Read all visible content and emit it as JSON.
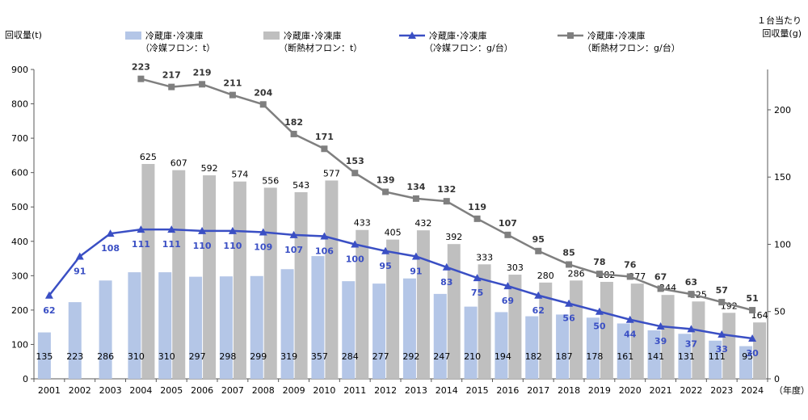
{
  "chart_data": {
    "type": "bar",
    "y_left_label": "回収量(t)",
    "y_right_label_line1": "１台当たり",
    "y_right_label_line2": "回収量(g)",
    "x_unit": "（年度）",
    "ylim_left": [
      0,
      900
    ],
    "yticks_left": [
      "0",
      "100",
      "200",
      "300",
      "400",
      "500",
      "600",
      "700",
      "800",
      "900"
    ],
    "ylim_right": [
      0,
      230
    ],
    "yticks_right": [
      "0",
      "50",
      "100",
      "150",
      "200"
    ],
    "categories": [
      "2001",
      "2002",
      "2003",
      "2004",
      "2005",
      "2006",
      "2007",
      "2008",
      "2009",
      "2010",
      "2011",
      "2012",
      "2013",
      "2014",
      "2015",
      "2016",
      "2017",
      "2018",
      "2019",
      "2020",
      "2021",
      "2022",
      "2023",
      "2024"
    ],
    "series": [
      {
        "name_line1": "冷蔵庫･冷凍庫",
        "name_line2": "（冷媒フロン：t）",
        "kind": "bar",
        "axis": "left",
        "color": "#b4c6e7",
        "values": [
          135,
          223,
          286,
          310,
          310,
          297,
          298,
          299,
          319,
          357,
          284,
          277,
          292,
          247,
          210,
          194,
          182,
          187,
          178,
          161,
          141,
          131,
          111,
          95
        ]
      },
      {
        "name_line1": "冷蔵庫･冷凍庫",
        "name_line2": "（断熱材フロン：t）",
        "kind": "bar",
        "axis": "left",
        "color": "#bfbfbf",
        "values": [
          null,
          null,
          null,
          625,
          607,
          592,
          574,
          556,
          543,
          577,
          433,
          405,
          432,
          392,
          333,
          303,
          280,
          286,
          282,
          277,
          244,
          225,
          192,
          164
        ]
      },
      {
        "name_line1": "冷蔵庫･冷凍庫",
        "name_line2": "（冷媒フロン：g/台）",
        "kind": "line",
        "axis": "right",
        "color": "#3a4fc4",
        "values": [
          62,
          91,
          108,
          111,
          111,
          110,
          110,
          109,
          107,
          106,
          100,
          95,
          91,
          83,
          75,
          69,
          62,
          56,
          50,
          44,
          39,
          37,
          33,
          30
        ]
      },
      {
        "name_line1": "冷蔵庫･冷凍庫",
        "name_line2": "（断熱材フロン：g/台）",
        "kind": "line",
        "axis": "right",
        "color": "#7f7f7f",
        "values": [
          null,
          null,
          null,
          223,
          217,
          219,
          211,
          204,
          182,
          171,
          153,
          139,
          134,
          132,
          119,
          107,
          95,
          85,
          78,
          76,
          67,
          63,
          57,
          51
        ]
      }
    ]
  }
}
